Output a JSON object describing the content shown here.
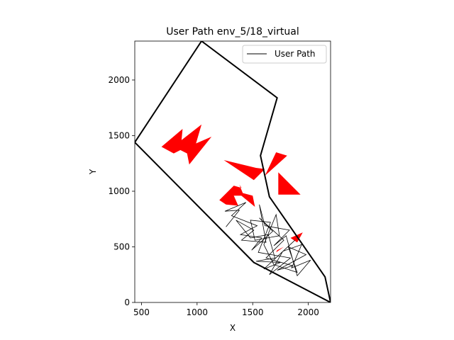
{
  "chart_data": {
    "type": "line",
    "title": "User Path env_5/18_virtual",
    "xlabel": "X",
    "ylabel": "Y",
    "xlim": [
      440,
      2200
    ],
    "ylim": [
      0,
      2350
    ],
    "xticks": [
      500,
      1000,
      1500,
      2000
    ],
    "yticks": [
      0,
      500,
      1000,
      1500,
      2000
    ],
    "legend": {
      "placement": "top-right",
      "entries": [
        "User Path"
      ]
    },
    "grid": false,
    "colors": {
      "boundary": "#000000",
      "obstacle": "#ff0000",
      "path": "#000000"
    },
    "boundary": [
      [
        440,
        1440
      ],
      [
        1040,
        2350
      ],
      [
        1720,
        1840
      ],
      [
        1570,
        1320
      ],
      [
        1650,
        950
      ],
      [
        2150,
        230
      ],
      [
        2200,
        0
      ],
      [
        1510,
        360
      ],
      [
        440,
        1440
      ]
    ],
    "obstacles": [
      [
        [
          680,
          1400
        ],
        [
          870,
          1560
        ],
        [
          860,
          1460
        ],
        [
          1040,
          1600
        ],
        [
          990,
          1430
        ],
        [
          1130,
          1490
        ],
        [
          930,
          1240
        ],
        [
          910,
          1340
        ],
        [
          850,
          1370
        ],
        [
          790,
          1340
        ]
      ],
      [
        [
          1240,
          1280
        ],
        [
          1510,
          1100
        ],
        [
          1610,
          1200
        ],
        [
          1530,
          1210
        ]
      ],
      [
        [
          1610,
          1140
        ],
        [
          1710,
          1350
        ],
        [
          1810,
          1320
        ]
      ],
      [
        [
          1730,
          1170
        ],
        [
          1930,
          970
        ],
        [
          1730,
          970
        ]
      ],
      [
        [
          1200,
          920
        ],
        [
          1330,
          1050
        ],
        [
          1400,
          1030
        ],
        [
          1380,
          1060
        ],
        [
          1420,
          960
        ],
        [
          1330,
          960
        ],
        [
          1370,
          870
        ],
        [
          1260,
          880
        ]
      ],
      [
        [
          1350,
          1000
        ],
        [
          1520,
          860
        ],
        [
          1500,
          960
        ]
      ],
      [
        [
          1840,
          580
        ],
        [
          1950,
          630
        ],
        [
          1900,
          540
        ]
      ],
      [
        [
          1720,
          470
        ],
        [
          1780,
          500
        ],
        [
          1710,
          450
        ]
      ]
    ],
    "series": [
      {
        "name": "User Path",
        "points": [
          [
            1260,
            680
          ],
          [
            1380,
            830
          ],
          [
            1250,
            820
          ],
          [
            1440,
            900
          ],
          [
            1310,
            780
          ],
          [
            1540,
            690
          ],
          [
            1390,
            610
          ],
          [
            1580,
            580
          ],
          [
            1490,
            470
          ],
          [
            1680,
            640
          ],
          [
            1560,
            760
          ],
          [
            1780,
            560
          ],
          [
            1620,
            400
          ],
          [
            1860,
            330
          ],
          [
            1720,
            290
          ],
          [
            1980,
            430
          ],
          [
            1820,
            500
          ],
          [
            1900,
            270
          ],
          [
            1690,
            340
          ],
          [
            1600,
            520
          ],
          [
            1710,
            790
          ],
          [
            1740,
            600
          ],
          [
            1520,
            560
          ],
          [
            1480,
            740
          ],
          [
            1660,
            720
          ],
          [
            1550,
            450
          ],
          [
            1840,
            400
          ],
          [
            1650,
            250
          ],
          [
            1770,
            460
          ],
          [
            1940,
            520
          ],
          [
            1850,
            310
          ],
          [
            2020,
            380
          ],
          [
            1900,
            240
          ],
          [
            1800,
            600
          ],
          [
            1690,
            510
          ],
          [
            1830,
            650
          ],
          [
            1610,
            690
          ],
          [
            1560,
            880
          ],
          [
            1620,
            540
          ],
          [
            1400,
            560
          ],
          [
            1510,
            650
          ],
          [
            1350,
            740
          ],
          [
            1480,
            580
          ],
          [
            1640,
            610
          ],
          [
            1700,
            400
          ],
          [
            1530,
            370
          ],
          [
            1750,
            360
          ],
          [
            1600,
            300
          ],
          [
            1880,
            560
          ]
        ]
      }
    ]
  }
}
